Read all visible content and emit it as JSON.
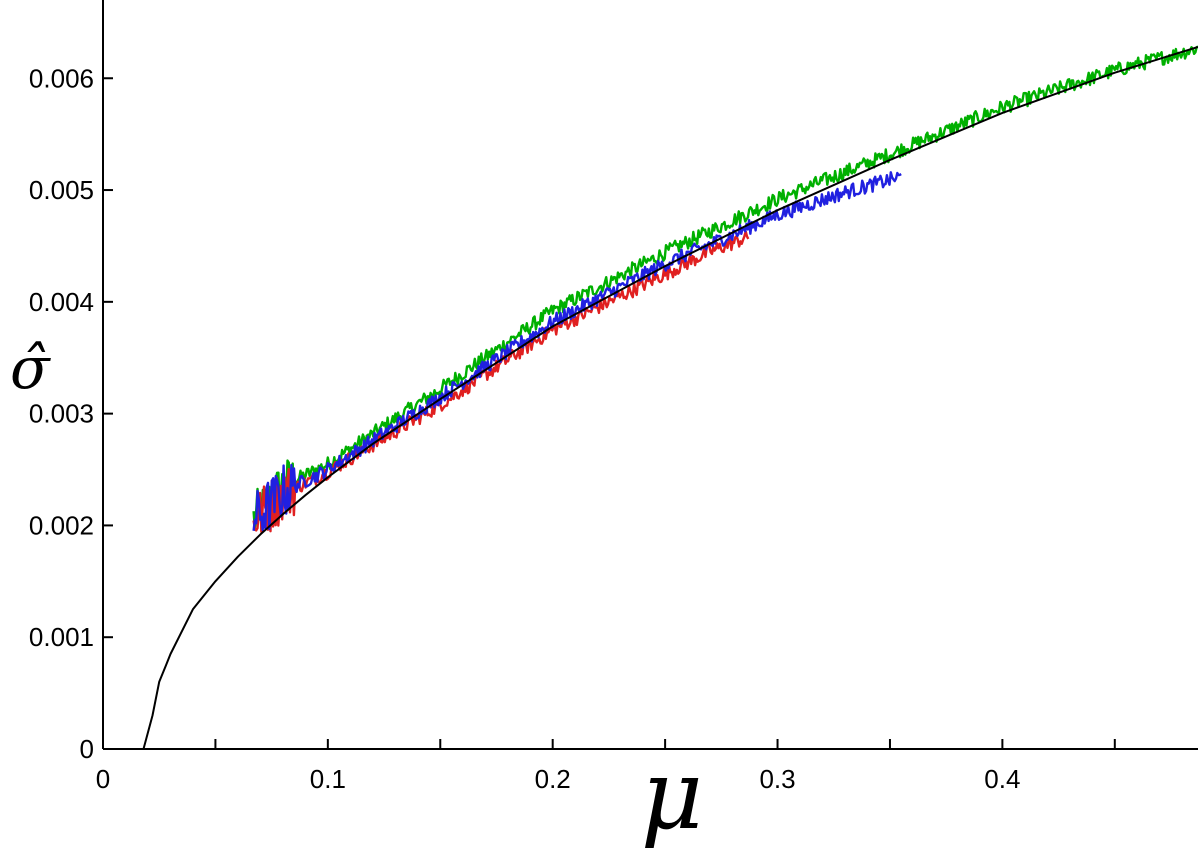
{
  "chart_data": {
    "type": "line",
    "title": "",
    "xlabel": "μ",
    "ylabel": "σ̂",
    "xlim": [
      0,
      0.487
    ],
    "ylim": [
      0,
      0.0067
    ],
    "x_ticks": [
      0,
      0.1,
      0.2,
      0.3,
      0.4
    ],
    "x_tick_labels": [
      "0",
      "0.1",
      "0.2",
      "0.3",
      "0.4"
    ],
    "x_minor_ticks": [
      0.05,
      0.15,
      0.25,
      0.35,
      0.45
    ],
    "y_ticks": [
      0,
      0.001,
      0.002,
      0.003,
      0.004,
      0.005,
      0.006
    ],
    "y_tick_labels": [
      "0",
      "0.001",
      "0.002",
      "0.003",
      "0.004",
      "0.005",
      "0.006"
    ],
    "grid": false,
    "legend": "none",
    "series": [
      {
        "color": "#000000",
        "style": "smooth-curve",
        "x": [
          0,
          0.018,
          0.022,
          0.025,
          0.028,
          0.03,
          0.04,
          0.05,
          0.06,
          0.07,
          0.08,
          0.09,
          0.1,
          0.12,
          0.15,
          0.2,
          0.25,
          0.3,
          0.35,
          0.4,
          0.45,
          0.487
        ],
        "y": [
          0,
          0,
          0.0003,
          0.0006,
          0.00075,
          0.00085,
          0.00125,
          0.0015,
          0.00172,
          0.00192,
          0.0021,
          0.00227,
          0.00243,
          0.00273,
          0.00313,
          0.00378,
          0.00432,
          0.00482,
          0.00527,
          0.00569,
          0.00605,
          0.00628
        ]
      },
      {
        "color": "#00b000",
        "style": "noisy",
        "x": [
          0.067,
          0.07,
          0.08,
          0.1,
          0.12,
          0.15,
          0.2,
          0.25,
          0.3,
          0.35,
          0.4,
          0.45,
          0.487
        ],
        "y": [
          0.00205,
          0.0021,
          0.00235,
          0.00255,
          0.00282,
          0.00322,
          0.00392,
          0.00444,
          0.00492,
          0.00532,
          0.00574,
          0.00607,
          0.00627
        ]
      },
      {
        "color": "#2020e0",
        "style": "noisy",
        "x": [
          0.067,
          0.07,
          0.08,
          0.1,
          0.12,
          0.15,
          0.2,
          0.25,
          0.3,
          0.33,
          0.355
        ],
        "y": [
          0.00205,
          0.0021,
          0.0023,
          0.0025,
          0.00276,
          0.00315,
          0.00382,
          0.00434,
          0.00478,
          0.00498,
          0.00512
        ]
      },
      {
        "color": "#e02020",
        "style": "noisy",
        "x": [
          0.067,
          0.07,
          0.08,
          0.1,
          0.12,
          0.15,
          0.2,
          0.25,
          0.27,
          0.287
        ],
        "y": [
          0.00205,
          0.0021,
          0.00228,
          0.00248,
          0.00272,
          0.00308,
          0.00375,
          0.00425,
          0.00445,
          0.00458
        ]
      }
    ]
  }
}
